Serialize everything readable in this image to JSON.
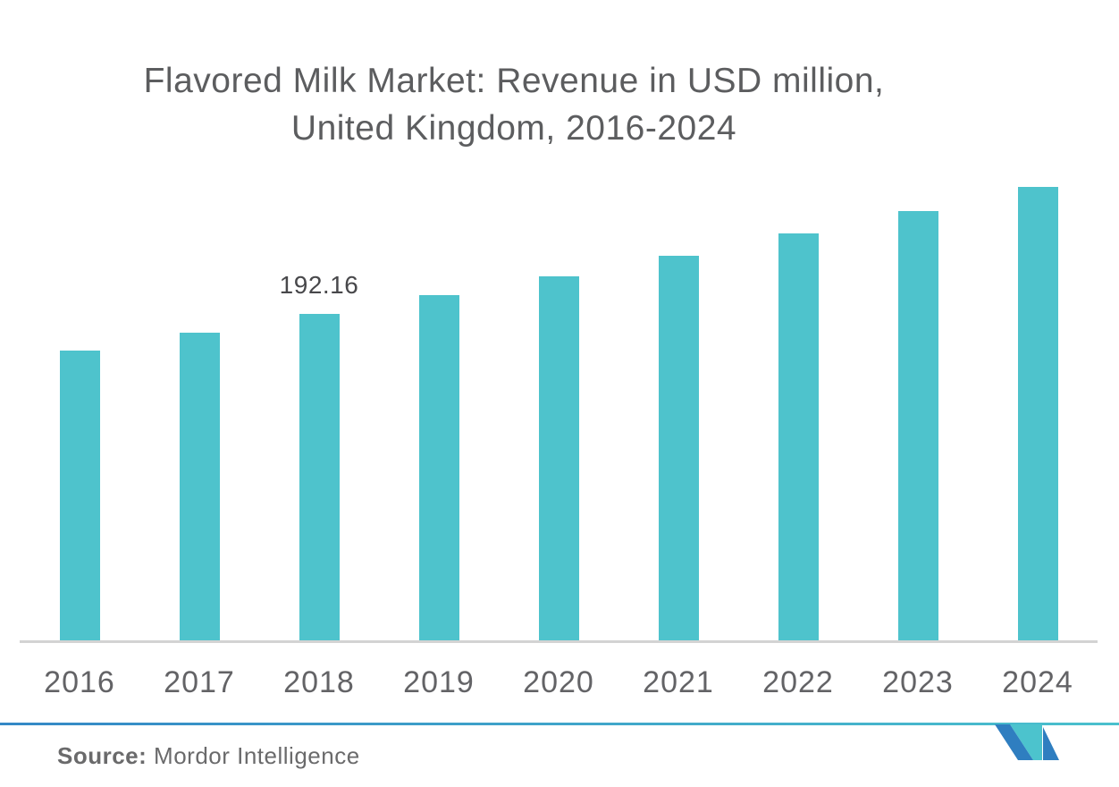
{
  "title": {
    "line1": "Flavored Milk Market: Revenue in USD million,",
    "line2": "United Kingdom, 2016-2024"
  },
  "chart_data": {
    "type": "bar",
    "title": "Flavored Milk Market: Revenue in USD million, United Kingdom, 2016-2024",
    "categories": [
      "2016",
      "2017",
      "2018",
      "2019",
      "2020",
      "2021",
      "2022",
      "2023",
      "2024"
    ],
    "series": [
      {
        "name": "Revenue in USD million",
        "values": [
          170.7,
          181.2,
          192.16,
          203.2,
          214.2,
          226.2,
          239.3,
          252.4,
          266.5
        ]
      }
    ],
    "labeled_point": {
      "category": "2018",
      "label": "192.16"
    },
    "xlabel": "",
    "ylabel": "Revenue in USD million",
    "ylim": [
      0,
      280
    ],
    "grid": false,
    "legend": false,
    "y_axis_visible": false,
    "bar_color": "#4EC3CC",
    "axis_line_color": "#D3D3D3"
  },
  "source": {
    "prefix": "Source:",
    "text": "Mordor Intelligence"
  },
  "branding": {
    "rule_gradient_left": "#3488C6",
    "rule_gradient_right": "#4AC0CD",
    "logo_blue": "#2F7EC0",
    "logo_teal": "#4CC3CD",
    "logo_name": "mordor-intelligence-logo"
  }
}
